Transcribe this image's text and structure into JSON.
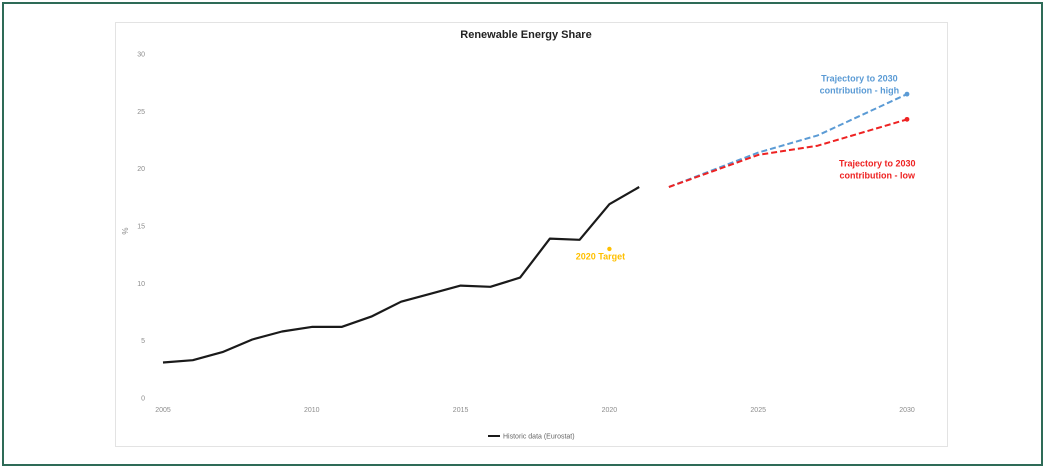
{
  "chart_data": {
    "type": "line",
    "title": "Renewable Energy Share",
    "xlabel": "",
    "ylabel": "%",
    "xlim": [
      2005,
      2030
    ],
    "ylim": [
      0,
      30
    ],
    "x_ticks": [
      2005,
      2010,
      2015,
      2020,
      2025,
      2030
    ],
    "y_ticks": [
      0,
      5,
      10,
      15,
      20,
      25,
      30
    ],
    "grid": false,
    "legend_position": "bottom",
    "series": [
      {
        "name": "Historic data (Eurostat)",
        "color": "#1a1a1a",
        "style": "solid",
        "x": [
          2005,
          2006,
          2007,
          2008,
          2009,
          2010,
          2011,
          2012,
          2013,
          2014,
          2015,
          2016,
          2017,
          2018,
          2019,
          2020,
          2021
        ],
        "y": [
          3.1,
          3.3,
          4.0,
          5.1,
          5.8,
          6.2,
          6.2,
          7.1,
          8.4,
          9.1,
          9.8,
          9.7,
          10.5,
          13.9,
          13.8,
          16.9,
          18.4
        ]
      },
      {
        "name": "",
        "color": "#5b9bd5",
        "style": "dashed",
        "x": [
          2022,
          2025,
          2027,
          2030
        ],
        "y": [
          18.4,
          21.4,
          22.9,
          26.5
        ],
        "end_marker": true
      },
      {
        "name": "",
        "color": "#ee2222",
        "style": "dashed",
        "x": [
          2022,
          2025,
          2027,
          2030
        ],
        "y": [
          18.4,
          21.2,
          22.0,
          24.3
        ],
        "end_marker": true
      }
    ],
    "points": [
      {
        "x": 2020,
        "y": 13.0,
        "color": "#ffc000"
      }
    ],
    "annotations": [
      {
        "lines": [
          "Trajectory to 2030",
          "contribution - high"
        ],
        "color": "#5b9bd5",
        "x": 2028.4,
        "y": 27.6
      },
      {
        "lines": [
          "Trajectory to 2030",
          "contribution - low"
        ],
        "color": "#ee2222",
        "x": 2029.0,
        "y": 20.2
      },
      {
        "lines": [
          "2020 Target"
        ],
        "color": "#ffc000",
        "x": 2019.7,
        "y": 12.1
      }
    ],
    "legend": [
      {
        "label": "Historic data (Eurostat)",
        "color": "#1a1a1a"
      }
    ]
  }
}
